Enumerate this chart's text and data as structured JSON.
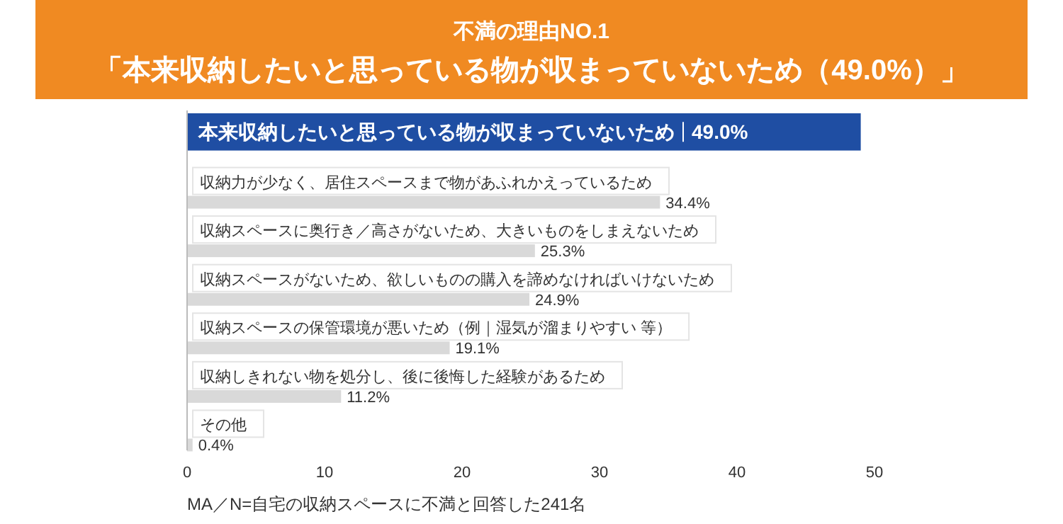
{
  "chart_data": {
    "type": "bar",
    "orientation": "horizontal",
    "title": "不満の理由NO.1",
    "subtitle": "「本来収納したいと思っている物が収まっていないため（49.0%）」",
    "categories": [
      "本来収納したいと思っている物が収まっていないため",
      "収納力が少なく、居住スペースまで物があふれかえっているため",
      "収納スペースに奥行き／高さがないため、大きいものをしまえないため",
      "収納スペースがないため、欲しいものの購入を諦めなければいけないため",
      "収納スペースの保管環境が悪いため（例｜湿気が溜まりやすい 等）",
      "収納しきれない物を処分し、後に後悔した経験があるため",
      "その他"
    ],
    "values": [
      49.0,
      34.4,
      25.3,
      24.9,
      19.1,
      11.2,
      0.4
    ],
    "value_labels": [
      "49.0%",
      "34.4%",
      "25.3%",
      "24.9%",
      "19.1%",
      "11.2%",
      "0.4%"
    ],
    "colors": [
      "#1f4ea3",
      "#d9d9d9",
      "#d9d9d9",
      "#d9d9d9",
      "#d9d9d9",
      "#d9d9d9",
      "#d9d9d9"
    ],
    "xlim": [
      0,
      50
    ],
    "xticks": [
      0,
      10,
      20,
      30,
      40,
      50
    ],
    "annotations": [
      "MA／N=自宅の収納スペースに不満と回答した241名"
    ]
  }
}
